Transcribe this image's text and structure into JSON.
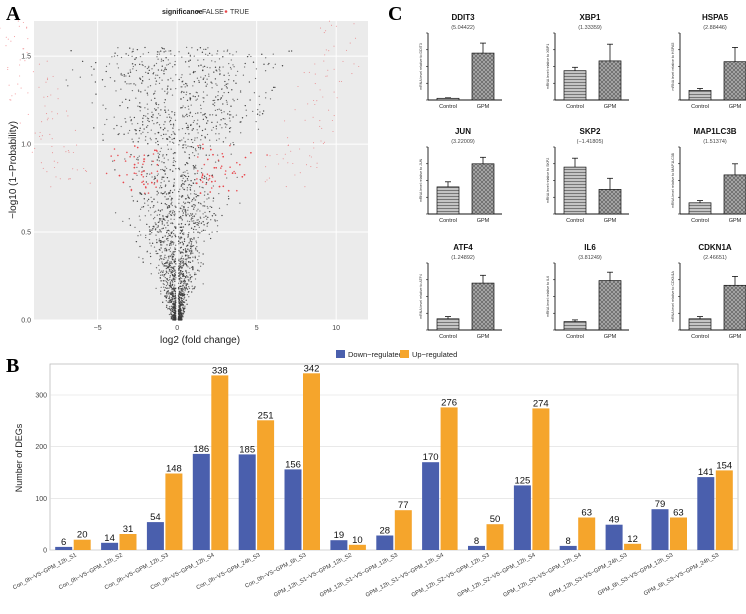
{
  "panel_labels": {
    "a": "A",
    "b": "B",
    "c": "C"
  },
  "colors": {
    "down": "#4a5fad",
    "up": "#f5a52c",
    "volcano_false": "#3a3a3a",
    "volcano_true": "#e8474c",
    "qpcr_fill": "#b8b8b8"
  },
  "chart_data": [
    {
      "panel": "A",
      "type": "scatter",
      "legend_title": "significance",
      "legend_entries": [
        "FALSE",
        "TRUE"
      ],
      "xlabel": "log2 (fold change)",
      "ylabel": "−log10 (1−Probability)",
      "x_ticks": [
        "−5",
        "0",
        "5",
        "10"
      ],
      "y_ticks": [
        "0.0",
        "0.5",
        "1.0",
        "1.5"
      ],
      "xlim": [
        -9,
        12
      ],
      "ylim": [
        0,
        1.7
      ],
      "legend_position": "top",
      "grid": true
    },
    {
      "panel": "B",
      "type": "bar",
      "ylabel": "Number of DEGs",
      "ylim": [
        0,
        360
      ],
      "y_ticks": [
        "0",
        "100",
        "200",
        "300"
      ],
      "legend_position": "top",
      "categories": [
        "Con_0h−VS−GPM_12h_S1",
        "Con_0h−VS−GPM_12h_S2",
        "Con_0h−VS−GPM_12h_S3",
        "Con_0h−VS−GPM_12h_S4",
        "Con_0h−VS−GPM_24h_S3",
        "Con_0h−VS−GPM_6h_S3",
        "GPM_12h_S1−VS−GPM_12h_S2",
        "GPM_12h_S1−VS−GPM_12h_S3",
        "GPM_12h_S1−VS−GPM_12h_S4",
        "GPM_12h_S2−VS−GPM_12h_S3",
        "GPM_12h_S2−VS−GPM_12h_S4",
        "GPM_12h_S3−VS−GPM_12h_S4",
        "GPM_12h_S3−VS−GPM_24h_S3",
        "GPM_6h_S3−VS−GPM_12h_S3",
        "GPM_6h_S3−VS−GPM_24h_S3"
      ],
      "series": [
        {
          "name": "Down−regulated",
          "values": [
            6,
            14,
            54,
            186,
            185,
            156,
            19,
            28,
            170,
            8,
            125,
            8,
            49,
            79,
            141
          ]
        },
        {
          "name": "Up−regulated",
          "values": [
            20,
            31,
            148,
            338,
            251,
            342,
            10,
            77,
            276,
            50,
            274,
            63,
            12,
            63,
            154
          ]
        }
      ]
    },
    {
      "panel": "C",
      "type": "bar",
      "categories": [
        "Control",
        "GPM"
      ],
      "subplots": [
        {
          "gene": "DDIT3",
          "fc": "(5.04422)",
          "ylabel": "mRNA level relative to DDIT3",
          "values": [
            1.0,
            28.0
          ],
          "errors": [
            0.3,
            6.0
          ],
          "ymax": 40
        },
        {
          "gene": "XBP1",
          "fc": "(1.33359)",
          "ylabel": "mRNA level relative to XBP1",
          "values": [
            1.05,
            1.4
          ],
          "errors": [
            0.12,
            0.6
          ],
          "ymax": 2.4
        },
        {
          "gene": "HSPA5",
          "fc": "(2.88446)",
          "ylabel": "mRNA level relative to HSPA5",
          "values": [
            1.0,
            4.0
          ],
          "errors": [
            0.2,
            1.5
          ],
          "ymax": 7
        },
        {
          "gene": "JUN",
          "fc": "(3.22009)",
          "ylabel": "mRNA level relative to JUN",
          "values": [
            1.05,
            1.95
          ],
          "errors": [
            0.2,
            0.25
          ],
          "ymax": 2.6
        },
        {
          "gene": "SKP2",
          "fc": "(−1.41805)",
          "ylabel": "mRNA level relative to SKP2",
          "values": [
            1.05,
            0.55
          ],
          "errors": [
            0.2,
            0.25
          ],
          "ymax": 1.5
        },
        {
          "gene": "MAP1LC3B",
          "fc": "(1.51374)",
          "ylabel": "mRNA level relative to MAP1LC3B",
          "values": [
            1.0,
            3.5
          ],
          "errors": [
            0.2,
            1.0
          ],
          "ymax": 6
        },
        {
          "gene": "ATF4",
          "fc": "(1.24892)",
          "ylabel": "mRNA level relative to ATF4",
          "values": [
            1.0,
            4.2
          ],
          "errors": [
            0.2,
            0.7
          ],
          "ymax": 6
        },
        {
          "gene": "IL6",
          "fc": "(3.81249)",
          "ylabel": "mRNA level relative to IL6",
          "values": [
            1.0,
            5.9
          ],
          "errors": [
            0.2,
            1.0
          ],
          "ymax": 8
        },
        {
          "gene": "CDKN1A",
          "fc": "(2.46651)",
          "ylabel": "mRNA level relative to CDKN1A",
          "values": [
            1.0,
            4.0
          ],
          "errors": [
            0.2,
            0.8
          ],
          "ymax": 6
        }
      ]
    }
  ]
}
